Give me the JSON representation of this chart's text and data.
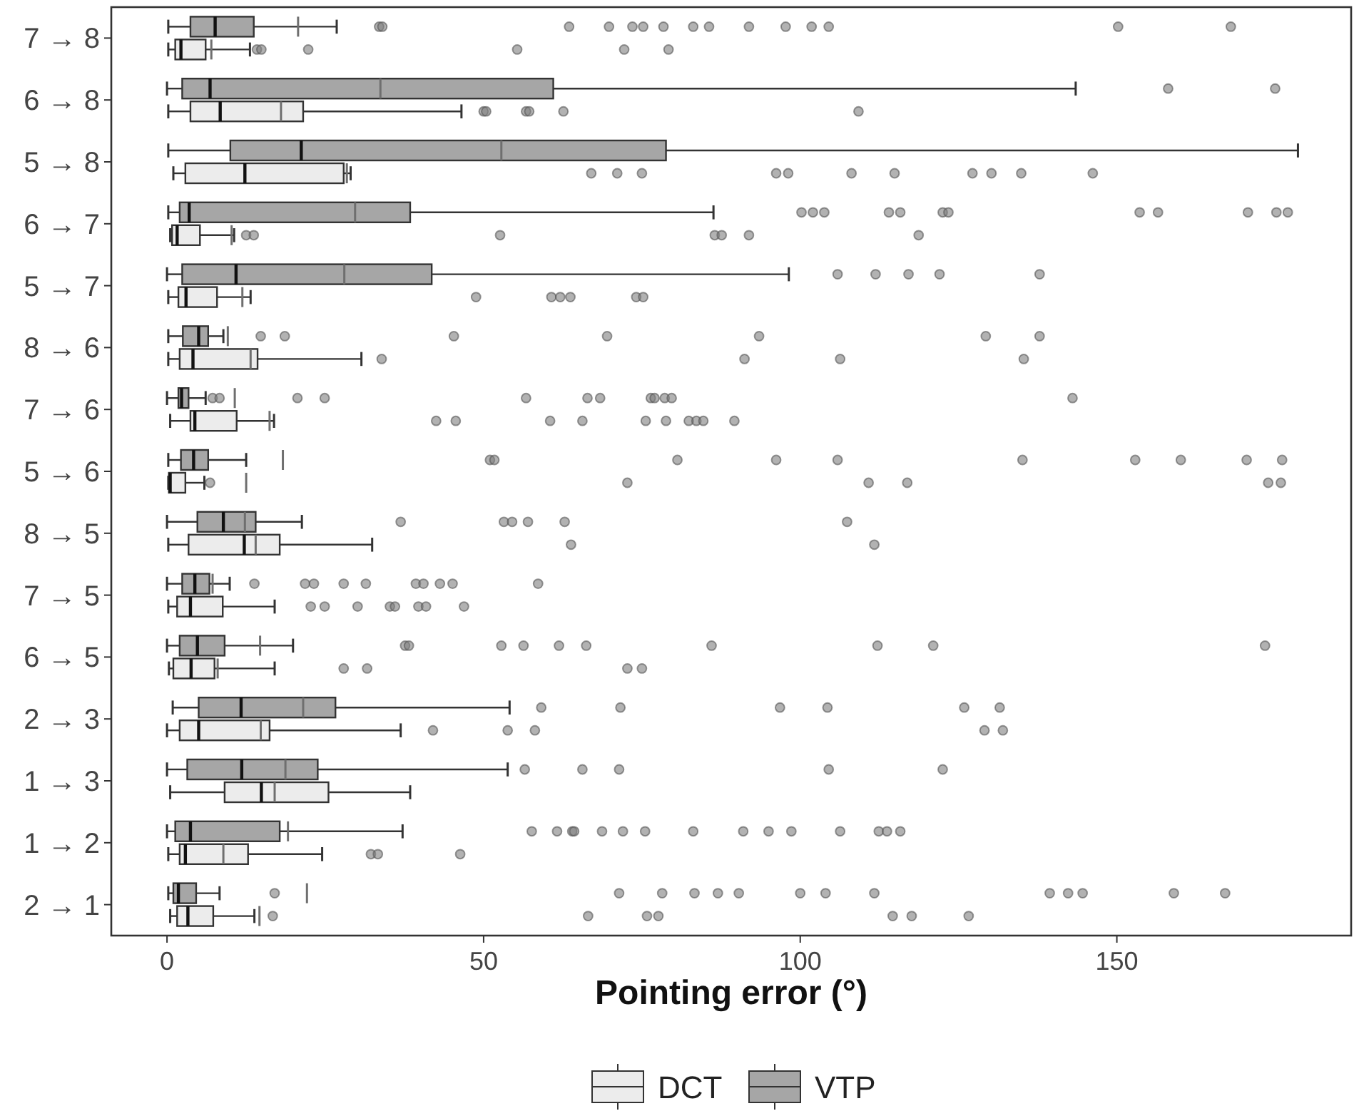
{
  "chart_data": {
    "type": "box",
    "orientation": "horizontal",
    "xlabel": "Pointing error (°)",
    "xlim": [
      -8.8,
      187
    ],
    "xticks": [
      0,
      50,
      100,
      150
    ],
    "grid": false,
    "legend": "bottom",
    "marker": "circle",
    "categories": [
      "7 → 8",
      "6 → 8",
      "5 → 8",
      "6 → 7",
      "5 → 7",
      "8 → 6",
      "7 → 6",
      "5 → 6",
      "8 → 5",
      "7 → 5",
      "6 → 5",
      "2 → 3",
      "1 → 3",
      "1 → 2",
      "2 → 1"
    ],
    "series": [
      {
        "name": "DCT",
        "color": "#ececec",
        "boxes": [
          {
            "low": 0.2,
            "q1": 1.3,
            "median": 2.2,
            "q3": 6.1,
            "high": 13.1,
            "mean": 7,
            "outliers": [
              14.2,
              14.9,
              22.3,
              55.3,
              72.2,
              79.2
            ]
          },
          {
            "low": 0.2,
            "q1": 3.7,
            "median": 8.4,
            "q3": 21.5,
            "high": 46.5,
            "mean": 18,
            "outliers": [
              50,
              50.4,
              56.7,
              57.2,
              62.6,
              109.2
            ]
          },
          {
            "low": 1,
            "q1": 2.9,
            "median": 12.3,
            "q3": 27.9,
            "high": 29,
            "mean": 28.4,
            "outliers": [
              67,
              71.1,
              75,
              96.2,
              98.1,
              108.1,
              114.9,
              127.2,
              130.2,
              134.9,
              146.2
            ]
          },
          {
            "low": 0.5,
            "q1": 0.8,
            "median": 1.6,
            "q3": 5.2,
            "high": 10.6,
            "mean": 10.2,
            "outliers": [
              12.5,
              13.7,
              52.6,
              86.5,
              87.6,
              91.9,
              118.7
            ]
          },
          {
            "low": 0.2,
            "q1": 1.8,
            "median": 3,
            "q3": 7.9,
            "high": 13.2,
            "mean": 11.9,
            "outliers": [
              48.8,
              60.7,
              62.1,
              63.7,
              74.1,
              75.2
            ]
          },
          {
            "low": 0.2,
            "q1": 2,
            "median": 4.1,
            "q3": 14.3,
            "high": 30.7,
            "mean": 13.2,
            "outliers": [
              33.9,
              91.2,
              106.3,
              135.3
            ]
          },
          {
            "low": 0.5,
            "q1": 3.7,
            "median": 4.4,
            "q3": 11,
            "high": 16.9,
            "mean": 16.2,
            "outliers": [
              42.5,
              45.6,
              60.5,
              65.6,
              75.6,
              78.8,
              82.4,
              83.6,
              84.7,
              89.6
            ]
          },
          {
            "low": 0.2,
            "q1": 0.3,
            "median": 0.5,
            "q3": 2.9,
            "high": 5.9,
            "mean": 12.5,
            "outliers": [
              6.8,
              72.7,
              110.8,
              116.9,
              173.9,
              175.9
            ]
          },
          {
            "low": 0.2,
            "q1": 3.4,
            "median": 12.2,
            "q3": 17.8,
            "high": 32.4,
            "mean": 14,
            "outliers": [
              63.8,
              111.7
            ]
          },
          {
            "low": 0.2,
            "q1": 1.6,
            "median": 3.7,
            "q3": 8.8,
            "high": 17,
            "outliers": [
              22.7,
              24.9,
              30.1,
              35.2,
              36,
              39.7,
              40.9,
              46.9
            ]
          },
          {
            "low": 0.3,
            "q1": 1,
            "median": 3.8,
            "q3": 7.5,
            "high": 17,
            "mean": 8,
            "outliers": [
              27.9,
              31.6,
              72.7,
              75
            ]
          },
          {
            "low": 0,
            "q1": 2,
            "median": 5,
            "q3": 16.2,
            "high": 36.9,
            "mean": 14.8,
            "outliers": [
              42,
              53.8,
              58.1,
              129.1,
              132
            ]
          },
          {
            "low": 0.5,
            "q1": 9.1,
            "median": 14.9,
            "q3": 25.5,
            "high": 38.4,
            "mean": 17
          },
          {
            "low": 0.2,
            "q1": 2,
            "median": 2.9,
            "q3": 12.8,
            "high": 24.5,
            "mean": 8.9,
            "outliers": [
              32.2,
              33.3,
              46.3
            ]
          },
          {
            "low": 0.5,
            "q1": 1.6,
            "median": 3.3,
            "q3": 7.3,
            "high": 13.8,
            "mean": 14.6,
            "outliers": [
              16.7,
              66.5,
              75.8,
              77.6,
              114.6,
              117.6,
              126.6
            ]
          }
        ]
      },
      {
        "name": "VTP",
        "color": "#a6a6a6",
        "boxes": [
          {
            "low": 0.2,
            "q1": 3.7,
            "median": 7.6,
            "q3": 13.7,
            "high": 26.8,
            "mean": 20.7,
            "outliers": [
              33.5,
              34,
              63.5,
              69.8,
              73.5,
              75.2,
              78.4,
              83.1,
              85.6,
              91.9,
              97.7,
              101.8,
              104.5,
              150.2,
              168
            ]
          },
          {
            "low": 0,
            "q1": 2.4,
            "median": 6.8,
            "q3": 61,
            "high": 143.5,
            "mean": 33.7,
            "outliers": [
              158.1,
              175
            ]
          },
          {
            "low": 0.2,
            "q1": 10,
            "median": 21.2,
            "q3": 78.8,
            "high": 178.6,
            "mean": 52.8
          },
          {
            "low": 0.2,
            "q1": 2,
            "median": 3.5,
            "q3": 38.4,
            "high": 86.3,
            "mean": 29.7,
            "outliers": [
              100.2,
              102,
              103.8,
              114,
              115.8,
              122.5,
              123.4,
              153.6,
              156.5,
              170.7,
              175.2,
              177
            ]
          },
          {
            "low": 0,
            "q1": 2.4,
            "median": 10.9,
            "q3": 41.8,
            "high": 98.2,
            "mean": 28,
            "outliers": [
              105.9,
              111.9,
              117.1,
              122,
              137.8
            ]
          },
          {
            "low": 0.2,
            "q1": 2.5,
            "median": 5,
            "q3": 6.5,
            "high": 8.9,
            "mean": 9.6,
            "outliers": [
              14.8,
              18.6,
              45.3,
              69.5,
              93.5,
              129.3,
              137.8
            ]
          },
          {
            "low": 0,
            "q1": 1.8,
            "median": 2.3,
            "q3": 3.4,
            "high": 6.1,
            "mean": 10.7,
            "outliers": [
              7.2,
              8.3,
              20.6,
              24.9,
              56.7,
              66.4,
              68.4,
              76.4,
              77,
              78.6,
              79.7,
              143
            ]
          },
          {
            "low": 0.2,
            "q1": 2.2,
            "median": 4.2,
            "q3": 6.5,
            "high": 12.5,
            "mean": 18.3,
            "outliers": [
              51,
              51.7,
              80.6,
              96.2,
              105.9,
              135.1,
              152.9,
              160.1,
              170.5,
              176.1
            ]
          },
          {
            "low": 0,
            "q1": 4.8,
            "median": 8.9,
            "q3": 14,
            "high": 21.3,
            "mean": 12.3,
            "outliers": [
              36.9,
              53.2,
              54.5,
              57,
              62.8,
              107.4
            ]
          },
          {
            "low": 0,
            "q1": 2.4,
            "median": 4.4,
            "q3": 6.7,
            "high": 9.9,
            "mean": 7.2,
            "outliers": [
              13.8,
              21.8,
              23.2,
              27.9,
              31.4,
              39.3,
              40.5,
              43.1,
              45.1,
              58.6
            ]
          },
          {
            "low": 0,
            "q1": 2,
            "median": 4.8,
            "q3": 9.1,
            "high": 19.9,
            "mean": 14.7,
            "outliers": [
              37.6,
              38.2,
              52.8,
              56.3,
              61.9,
              66.2,
              86,
              112.2,
              121,
              173.4
            ]
          },
          {
            "low": 0.9,
            "q1": 5,
            "median": 11.7,
            "q3": 26.6,
            "high": 54.1,
            "mean": 21.5,
            "outliers": [
              59.1,
              71.6,
              96.8,
              104.3,
              125.9,
              131.5
            ]
          },
          {
            "low": 0,
            "q1": 3.2,
            "median": 11.8,
            "q3": 23.8,
            "high": 53.8,
            "mean": 18.7,
            "outliers": [
              56.5,
              65.6,
              71.4,
              104.5,
              122.5
            ]
          },
          {
            "low": 0,
            "q1": 1.3,
            "median": 3.7,
            "q3": 17.8,
            "high": 37.2,
            "mean": 19.1,
            "outliers": [
              57.6,
              61.6,
              64,
              64.3,
              68.7,
              72,
              75.5,
              83.1,
              91,
              95,
              98.6,
              106.3,
              112.4,
              113.7,
              115.8
            ]
          },
          {
            "low": 0.2,
            "q1": 1,
            "median": 1.8,
            "q3": 4.6,
            "high": 8.3,
            "mean": 22.1,
            "outliers": [
              17,
              71.4,
              78.2,
              83.3,
              87,
              90.3,
              100,
              104,
              111.7,
              139.4,
              142.3,
              144.6,
              159,
              167.1
            ]
          }
        ]
      }
    ]
  }
}
